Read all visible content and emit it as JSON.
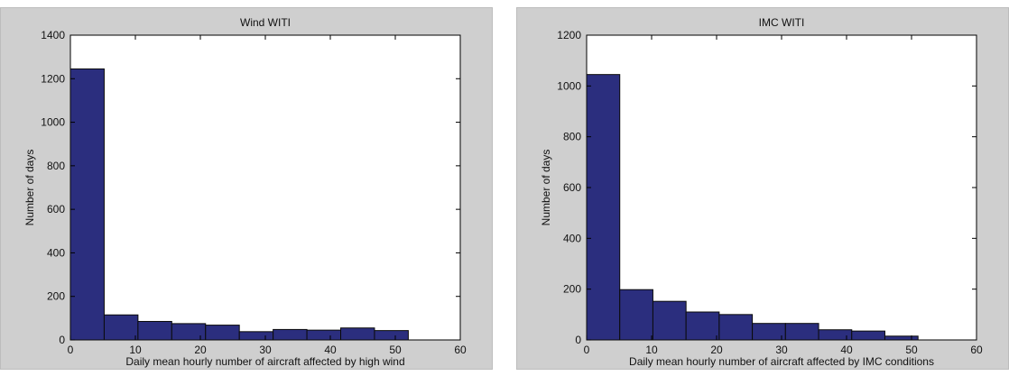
{
  "colors": {
    "bar_fill": "#2b2e7e",
    "bar_edge": "#0b0b0b",
    "axes_background": "#ffffff",
    "figure_background": "#cfcfcf"
  },
  "chart_data": [
    {
      "type": "bar",
      "title": "Wind WITI",
      "xlabel": "Daily mean hourly number of aircraft affected by high wind",
      "ylabel": "Number of days",
      "xlim": [
        0,
        60
      ],
      "ylim": [
        0,
        1400
      ],
      "xticks": [
        0,
        10,
        20,
        30,
        40,
        50,
        60
      ],
      "yticks": [
        0,
        200,
        400,
        600,
        800,
        1000,
        1200,
        1400
      ],
      "grid": false,
      "bins": [
        {
          "start": 0.0,
          "end": 5.2,
          "count": 1245
        },
        {
          "start": 5.2,
          "end": 10.4,
          "count": 115
        },
        {
          "start": 10.4,
          "end": 15.6,
          "count": 85
        },
        {
          "start": 15.6,
          "end": 20.8,
          "count": 75
        },
        {
          "start": 20.8,
          "end": 26.0,
          "count": 68
        },
        {
          "start": 26.0,
          "end": 31.2,
          "count": 38
        },
        {
          "start": 31.2,
          "end": 36.4,
          "count": 48
        },
        {
          "start": 36.4,
          "end": 41.6,
          "count": 45
        },
        {
          "start": 41.6,
          "end": 46.8,
          "count": 55
        },
        {
          "start": 46.8,
          "end": 52.0,
          "count": 43
        }
      ]
    },
    {
      "type": "bar",
      "title": "IMC WITI",
      "xlabel": "Daily mean hourly number of aircraft affected by IMC conditions",
      "ylabel": "Number of days",
      "xlim": [
        0,
        60
      ],
      "ylim": [
        0,
        1200
      ],
      "xticks": [
        0,
        10,
        20,
        30,
        40,
        50,
        60
      ],
      "yticks": [
        0,
        200,
        400,
        600,
        800,
        1000,
        1200
      ],
      "grid": false,
      "bins": [
        {
          "start": 0.0,
          "end": 5.1,
          "count": 1045
        },
        {
          "start": 5.1,
          "end": 10.2,
          "count": 198
        },
        {
          "start": 10.2,
          "end": 15.3,
          "count": 152
        },
        {
          "start": 15.3,
          "end": 20.4,
          "count": 110
        },
        {
          "start": 20.4,
          "end": 25.5,
          "count": 100
        },
        {
          "start": 25.5,
          "end": 30.6,
          "count": 65
        },
        {
          "start": 30.6,
          "end": 35.7,
          "count": 65
        },
        {
          "start": 35.7,
          "end": 40.8,
          "count": 40
        },
        {
          "start": 40.8,
          "end": 45.9,
          "count": 35
        },
        {
          "start": 45.9,
          "end": 51.0,
          "count": 15
        }
      ]
    }
  ]
}
